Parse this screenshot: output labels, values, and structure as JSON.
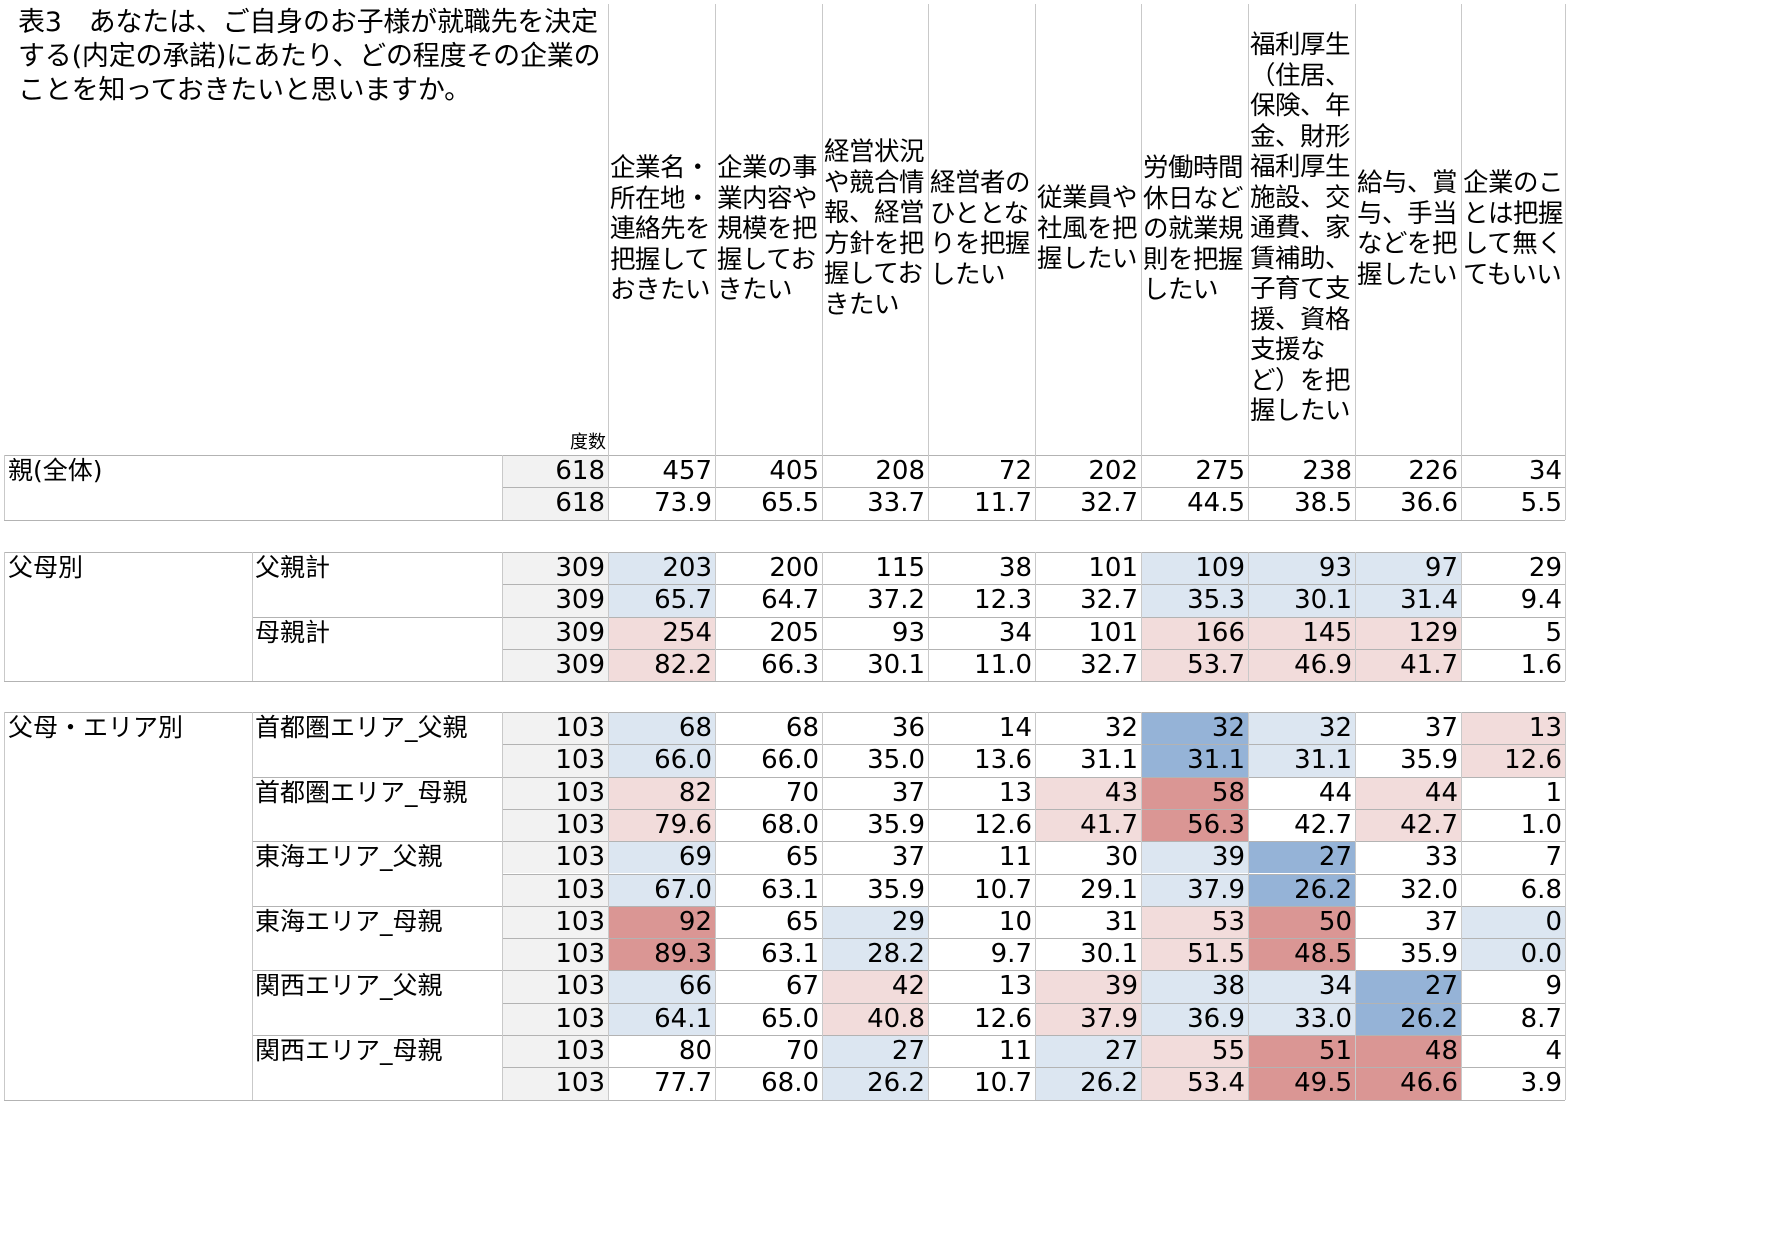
{
  "title": "表3　あなたは、ご自身のお子様が就職先を決定する(内定の承諾)にあたり、どの程度その企業のことを知っておきたいと思いますか。",
  "base_label": "度数",
  "columns": [
    "企業名・\n所在地・\n連絡先を\n把握して\nおきたい",
    "企業の事\n業内容や\n規模を把\n握してお\nきたい",
    "経営状況\nや競合情\n報、経営\n方針を把\n握してお\nきたい",
    "経営者の\nひととな\nりを把握\nしたい",
    "従業員や\n社風を把\n握したい",
    "労働時間\n休日など\nの就業規\n則を把握\nしたい",
    "福利厚生\n（住居、\n保険、年\n金、財形\n福利厚生\n施設、交\n通費、家\n賃補助、\n子育て支\n援、資格\n支援な\nど）を把\n握したい",
    "給与、賞\n与、手当\nなどを把\n握したい",
    "企業のこ\nとは把握\nして無く\nてもいい"
  ],
  "sections": [
    {
      "label": "親(全体)",
      "groups": [
        {
          "label": "",
          "count": {
            "base": "618",
            "values": [
              "457",
              "405",
              "208",
              "72",
              "202",
              "275",
              "238",
              "226",
              "34"
            ],
            "shades": [
              "",
              "",
              "",
              "",
              "",
              "",
              "",
              "",
              ""
            ]
          },
          "pct": {
            "base": "618",
            "values": [
              "73.9",
              "65.5",
              "33.7",
              "11.7",
              "32.7",
              "44.5",
              "38.5",
              "36.6",
              "5.5"
            ],
            "shades": [
              "",
              "",
              "",
              "",
              "",
              "",
              "",
              "",
              ""
            ]
          }
        }
      ]
    },
    {
      "label": "父母別",
      "groups": [
        {
          "label": "父親計",
          "count": {
            "base": "309",
            "values": [
              "203",
              "200",
              "115",
              "38",
              "101",
              "109",
              "93",
              "97",
              "29"
            ],
            "shades": [
              "bl",
              "",
              "",
              "",
              "",
              "bl",
              "bl",
              "bl",
              ""
            ]
          },
          "pct": {
            "base": "309",
            "values": [
              "65.7",
              "64.7",
              "37.2",
              "12.3",
              "32.7",
              "35.3",
              "30.1",
              "31.4",
              "9.4"
            ],
            "shades": [
              "bl",
              "",
              "",
              "",
              "",
              "bl",
              "bl",
              "bl",
              ""
            ]
          }
        },
        {
          "label": "母親計",
          "count": {
            "base": "309",
            "values": [
              "254",
              "205",
              "93",
              "34",
              "101",
              "166",
              "145",
              "129",
              "5"
            ],
            "shades": [
              "rl",
              "",
              "",
              "",
              "",
              "rl",
              "rl",
              "rl",
              ""
            ]
          },
          "pct": {
            "base": "309",
            "values": [
              "82.2",
              "66.3",
              "30.1",
              "11.0",
              "32.7",
              "53.7",
              "46.9",
              "41.7",
              "1.6"
            ],
            "shades": [
              "rl",
              "",
              "",
              "",
              "",
              "rl",
              "rl",
              "rl",
              ""
            ]
          }
        }
      ]
    },
    {
      "label": "父母・エリア別",
      "groups": [
        {
          "label": "首都圏エリア_父親",
          "count": {
            "base": "103",
            "values": [
              "68",
              "68",
              "36",
              "14",
              "32",
              "32",
              "32",
              "37",
              "13"
            ],
            "shades": [
              "bl",
              "",
              "",
              "",
              "",
              "bd",
              "bl",
              "",
              "rl"
            ]
          },
          "pct": {
            "base": "103",
            "values": [
              "66.0",
              "66.0",
              "35.0",
              "13.6",
              "31.1",
              "31.1",
              "31.1",
              "35.9",
              "12.6"
            ],
            "shades": [
              "bl",
              "",
              "",
              "",
              "",
              "bd",
              "bl",
              "",
              "rl"
            ]
          }
        },
        {
          "label": "首都圏エリア_母親",
          "count": {
            "base": "103",
            "values": [
              "82",
              "70",
              "37",
              "13",
              "43",
              "58",
              "44",
              "44",
              "1"
            ],
            "shades": [
              "rl",
              "",
              "",
              "",
              "rl",
              "rd",
              "",
              "rl",
              ""
            ]
          },
          "pct": {
            "base": "103",
            "values": [
              "79.6",
              "68.0",
              "35.9",
              "12.6",
              "41.7",
              "56.3",
              "42.7",
              "42.7",
              "1.0"
            ],
            "shades": [
              "rl",
              "",
              "",
              "",
              "rl",
              "rd",
              "",
              "rl",
              ""
            ]
          }
        },
        {
          "label": "東海エリア_父親",
          "count": {
            "base": "103",
            "values": [
              "69",
              "65",
              "37",
              "11",
              "30",
              "39",
              "27",
              "33",
              "7"
            ],
            "shades": [
              "bl",
              "",
              "",
              "",
              "",
              "bl",
              "bd",
              "",
              ""
            ]
          },
          "pct": {
            "base": "103",
            "values": [
              "67.0",
              "63.1",
              "35.9",
              "10.7",
              "29.1",
              "37.9",
              "26.2",
              "32.0",
              "6.8"
            ],
            "shades": [
              "bl",
              "",
              "",
              "",
              "",
              "bl",
              "bd",
              "",
              ""
            ]
          }
        },
        {
          "label": "東海エリア_母親",
          "count": {
            "base": "103",
            "values": [
              "92",
              "65",
              "29",
              "10",
              "31",
              "53",
              "50",
              "37",
              "0"
            ],
            "shades": [
              "rd",
              "",
              "bl",
              "",
              "",
              "rl",
              "rd",
              "",
              "bl"
            ]
          },
          "pct": {
            "base": "103",
            "values": [
              "89.3",
              "63.1",
              "28.2",
              "9.7",
              "30.1",
              "51.5",
              "48.5",
              "35.9",
              "0.0"
            ],
            "shades": [
              "rd",
              "",
              "bl",
              "",
              "",
              "rl",
              "rd",
              "",
              "bl"
            ]
          }
        },
        {
          "label": "関西エリア_父親",
          "count": {
            "base": "103",
            "values": [
              "66",
              "67",
              "42",
              "13",
              "39",
              "38",
              "34",
              "27",
              "9"
            ],
            "shades": [
              "bl",
              "",
              "rl",
              "",
              "rl",
              "bl",
              "bl",
              "bd",
              ""
            ]
          },
          "pct": {
            "base": "103",
            "values": [
              "64.1",
              "65.0",
              "40.8",
              "12.6",
              "37.9",
              "36.9",
              "33.0",
              "26.2",
              "8.7"
            ],
            "shades": [
              "bl",
              "",
              "rl",
              "",
              "rl",
              "bl",
              "bl",
              "bd",
              ""
            ]
          }
        },
        {
          "label": "関西エリア_母親",
          "count": {
            "base": "103",
            "values": [
              "80",
              "70",
              "27",
              "11",
              "27",
              "55",
              "51",
              "48",
              "4"
            ],
            "shades": [
              "",
              "",
              "bl",
              "",
              "bl",
              "rl",
              "rd",
              "rd",
              ""
            ]
          },
          "pct": {
            "base": "103",
            "values": [
              "77.7",
              "68.0",
              "26.2",
              "10.7",
              "26.2",
              "53.4",
              "49.5",
              "46.6",
              "3.9"
            ],
            "shades": [
              "",
              "",
              "bl",
              "",
              "bl",
              "rl",
              "rd",
              "rd",
              ""
            ]
          }
        }
      ]
    }
  ],
  "colors": {
    "blue_light": "#dce6f1",
    "blue_dark": "#95b3d7",
    "red_light": "#f2dcdb",
    "red_dark": "#da9694",
    "base_fill": "#f2f2f2"
  }
}
